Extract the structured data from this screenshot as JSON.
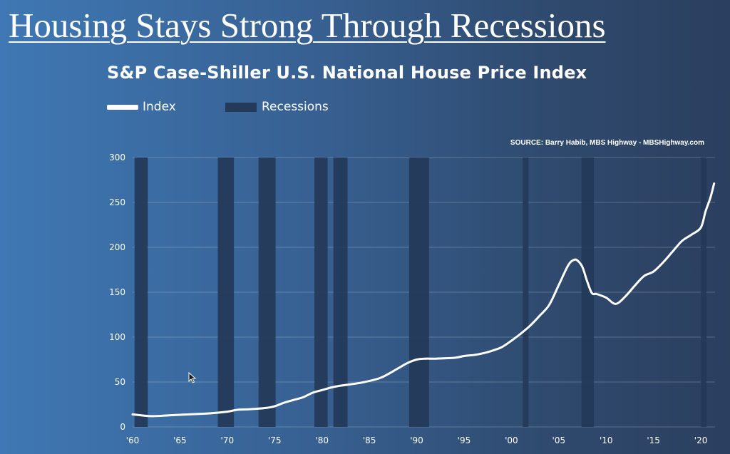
{
  "slide": {
    "title": "Housing Stays Strong Through Recessions"
  },
  "chart_data": {
    "type": "line",
    "title": "S&P Case-Shiller U.S. National House Price Index",
    "source": "SOURCE: Barry Habib, MBS Highway - MBSHighway.com",
    "legend": {
      "placement": "top-left",
      "index_label": "Index",
      "recessions_label": "Recessions"
    },
    "xlabel": "",
    "ylabel": "",
    "xlim": [
      1960,
      2021.5
    ],
    "ylim": [
      0,
      300
    ],
    "yticks": [
      0,
      50,
      100,
      150,
      200,
      250,
      300
    ],
    "ytick_labels": [
      "0",
      "50",
      "100",
      "150",
      "200",
      "250",
      "300"
    ],
    "xticks": [
      1960,
      1965,
      1970,
      1975,
      1980,
      1985,
      1990,
      1995,
      2000,
      2005,
      2010,
      2015,
      2020
    ],
    "xtick_labels": [
      "'60",
      "'65",
      "'70",
      "'75",
      "'80",
      "'85",
      "'90",
      "'95",
      "'00",
      "'05",
      "'10",
      "'15",
      "'20"
    ],
    "grid": "horizontal",
    "recessions": [
      {
        "start": 1960.2,
        "end": 1961.6
      },
      {
        "start": 1969.0,
        "end": 1970.7
      },
      {
        "start": 1973.3,
        "end": 1975.1
      },
      {
        "start": 1979.2,
        "end": 1980.6
      },
      {
        "start": 1981.2,
        "end": 1982.7
      },
      {
        "start": 1989.2,
        "end": 1991.3
      },
      {
        "start": 2001.2,
        "end": 2001.8
      },
      {
        "start": 2007.4,
        "end": 2008.7
      },
      {
        "start": 2020.0,
        "end": 2020.6
      }
    ],
    "series": [
      {
        "name": "Index",
        "color": "#ffffff",
        "x": [
          1960,
          1962,
          1964,
          1966,
          1968,
          1970,
          1971,
          1972,
          1974,
          1975,
          1976,
          1977,
          1978,
          1979,
          1980,
          1981,
          1982,
          1984,
          1986,
          1987,
          1988,
          1989,
          1990,
          1991,
          1992,
          1994,
          1995,
          1996,
          1997,
          1998,
          1999,
          2000,
          2001,
          2002,
          2003,
          2004,
          2005,
          2006,
          2006.6,
          2007,
          2007.5,
          2008,
          2008.5,
          2009,
          2010,
          2011,
          2012,
          2013,
          2014,
          2015,
          2016,
          2017,
          2018,
          2019,
          2020,
          2020.5,
          2021,
          2021.4
        ],
        "values": [
          14,
          12,
          13,
          14,
          15,
          17,
          19,
          19.5,
          21,
          23,
          27,
          30,
          33,
          38,
          41,
          44,
          46,
          49,
          54,
          59,
          65,
          71,
          75,
          76,
          76,
          77,
          79,
          80,
          82,
          85,
          89,
          96,
          104,
          113,
          124,
          136,
          158,
          180,
          186,
          185,
          178,
          162,
          149,
          148,
          144,
          137,
          145,
          157,
          168,
          173,
          183,
          195,
          207,
          214,
          222,
          240,
          255,
          271
        ]
      }
    ]
  }
}
